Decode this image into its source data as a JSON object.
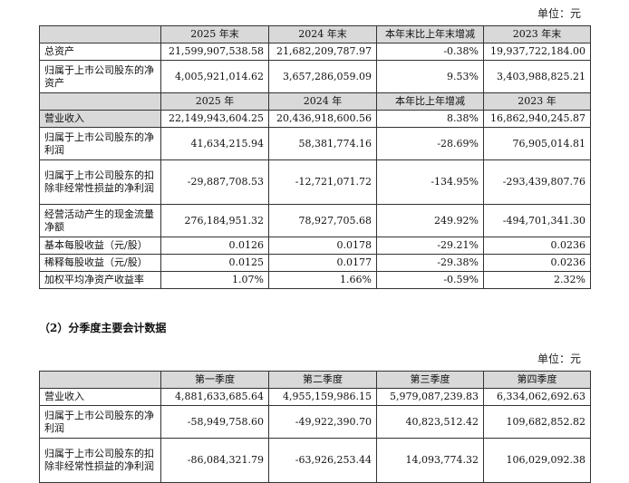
{
  "unit_label": "单位：元",
  "table1": {
    "header1": [
      "",
      "2025 年末",
      "2024 年末",
      "本年末比上年末增减",
      "2023 年末"
    ],
    "rows1": [
      {
        "label": "总资产",
        "c1": "21,599,907,538.58",
        "c2": "21,682,209,787.97",
        "c3": "-0.38%",
        "c4": "19,937,722,184.00"
      },
      {
        "label": "归属于上市公司股东的净资产",
        "c1": "4,005,921,014.62",
        "c2": "3,657,286,059.09",
        "c3": "9.53%",
        "c4": "3,403,988,825.21"
      }
    ],
    "header2": [
      "",
      "2025 年",
      "2024 年",
      "本年比上年增减",
      "2023 年"
    ],
    "rows2": [
      {
        "label": "营业收入",
        "c1": "22,149,943,604.25",
        "c2": "20,436,918,600.56",
        "c3": "8.38%",
        "c4": "16,862,940,245.87"
      },
      {
        "label": "归属于上市公司股东的净利润",
        "c1": "41,634,215.94",
        "c2": "58,381,774.16",
        "c3": "-28.69%",
        "c4": "76,905,014.81"
      },
      {
        "label": "归属于上市公司股东的扣除非经常性损益的净利润",
        "c1": "-29,887,708.53",
        "c2": "-12,721,071.72",
        "c3": "-134.95%",
        "c4": "-293,439,807.76"
      },
      {
        "label": "经营活动产生的现金流量净额",
        "c1": "276,184,951.32",
        "c2": "78,927,705.68",
        "c3": "249.92%",
        "c4": "-494,701,341.30"
      },
      {
        "label": "基本每股收益（元/股）",
        "c1": "0.0126",
        "c2": "0.0178",
        "c3": "-29.21%",
        "c4": "0.0236"
      },
      {
        "label": "稀释每股收益（元/股）",
        "c1": "0.0125",
        "c2": "0.0177",
        "c3": "-29.38%",
        "c4": "0.0236"
      },
      {
        "label": "加权平均净资产收益率",
        "c1": "1.07%",
        "c2": "1.66%",
        "c3": "-0.59%",
        "c4": "2.32%"
      }
    ]
  },
  "section2_title": "（2）分季度主要会计数据",
  "table2": {
    "header": [
      "",
      "第一季度",
      "第二季度",
      "第三季度",
      "第四季度"
    ],
    "rows": [
      {
        "label": "营业收入",
        "c1": "4,881,633,685.64",
        "c2": "4,955,159,986.15",
        "c3": "5,979,087,239.83",
        "c4": "6,334,062,692.63"
      },
      {
        "label": "归属于上市公司股东的净利润",
        "c1": "-58,949,758.60",
        "c2": "-49,922,390.70",
        "c3": "40,823,512.42",
        "c4": "109,682,852.82"
      },
      {
        "label": "归属于上市公司股东的扣除非经常性损益的净利润",
        "c1": "-86,084,321.79",
        "c2": "-63,926,253.44",
        "c3": "14,093,774.32",
        "c4": "106,029,092.38"
      }
    ]
  }
}
